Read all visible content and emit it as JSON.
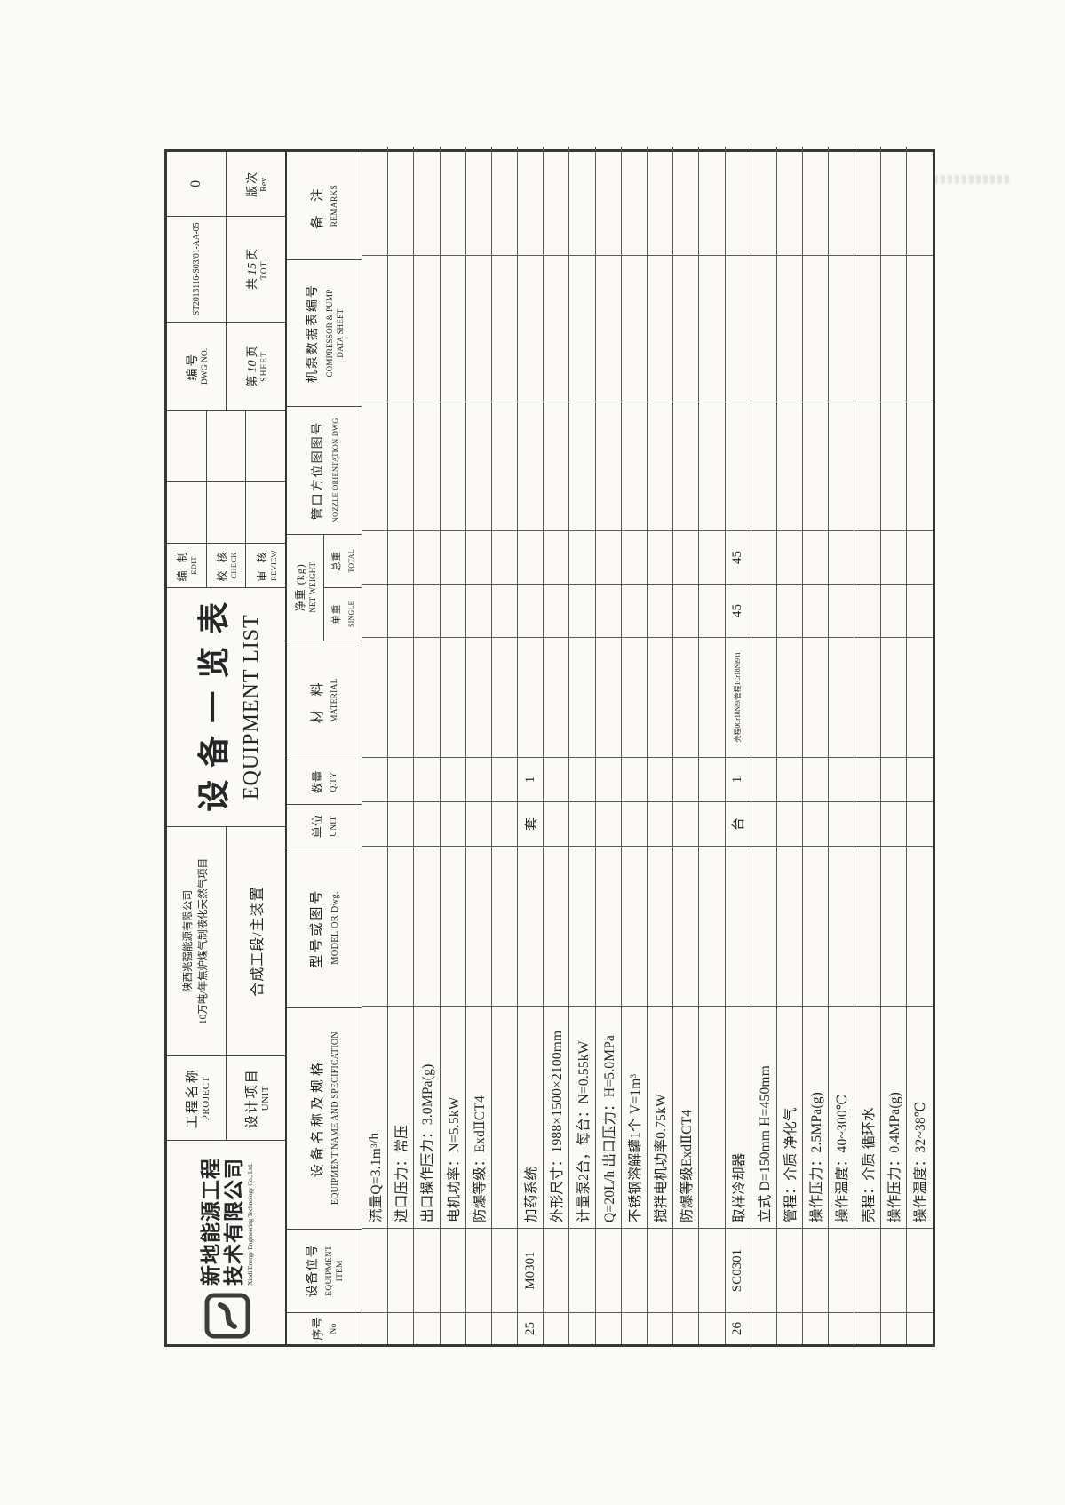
{
  "title_block": {
    "company": {
      "name_line1": "新地能源工程",
      "name_line2": "技术有限公司",
      "name_en": "Xindi Energy Engineering Technology Co., Ltd."
    },
    "project_label": {
      "zh": "工程名称",
      "en": "PROJECT"
    },
    "unit_label": {
      "zh": "设计项目",
      "en": "UNIT"
    },
    "project_name_line1": "陕西兆强能源有限公司",
    "project_name_line2": "10万吨/年焦炉煤气制液化天然气项目",
    "unit_value": "合成工段/主装置",
    "doc_title_zh": "设备一览表",
    "doc_title_en": "EQUIPMENT LIST",
    "sign_rows": [
      {
        "zh": "编 制",
        "en": "EDIT"
      },
      {
        "zh": "校 核",
        "en": "CHECK"
      },
      {
        "zh": "审 核",
        "en": "REVIEW"
      }
    ],
    "dwg": {
      "zh": "编号",
      "en": "DWG NO.",
      "value": "ST2013116-S03/01-AA-05"
    },
    "sheet_page": {
      "prefix": "第",
      "value": "10",
      "suffix": "页",
      "en": "SHEET"
    },
    "sheet_total": {
      "prefix": "共",
      "value": "15",
      "suffix": "页",
      "en": "TOT."
    },
    "rev": {
      "zh": "版次",
      "en": "Rev.",
      "value": "0"
    }
  },
  "table": {
    "headers": {
      "no": {
        "zh": "序号",
        "en": "No"
      },
      "item": {
        "zh": "设备位号",
        "en": "EQUIPMENT ITEM"
      },
      "spec": {
        "zh": "设备名称及规格",
        "en": "EQUIPMENT NAME AND SPECIFICATION"
      },
      "model": {
        "zh": "型号或图号",
        "en": "MODEL OR Dwg."
      },
      "unit": {
        "zh": "单位",
        "en": "UNIT"
      },
      "qty": {
        "zh": "数量",
        "en": "Q.TY"
      },
      "material": {
        "zh": "材 料",
        "en": "MATERIAL"
      },
      "net_weight": {
        "zh": "净重 (kg)",
        "en": "NET WEIGHT"
      },
      "single": {
        "zh": "单重",
        "en": "SINGLE"
      },
      "total": {
        "zh": "总重",
        "en": "TOTAL"
      },
      "nozzle": {
        "zh": "管口方位图图号",
        "en": "NOZZLE ORIENTATION DWG"
      },
      "pump": {
        "zh": "机泵数据表编号",
        "en": "COMPRESSOR & PUMP DATA SHEET"
      },
      "remarks": {
        "zh": "备 注",
        "en": "REMARKS"
      }
    },
    "rows": [
      {
        "spec": "流量Q=3.1m³/h"
      },
      {
        "spec": "进口压力：常压"
      },
      {
        "spec": "出口操作压力：3.0MPa(g)"
      },
      {
        "spec": "电机功率：N=5.5kW"
      },
      {
        "spec": "防爆等级：ExdⅡCT4"
      },
      {},
      {
        "no": "25",
        "item": "M0301",
        "spec": "加药系统",
        "unit": "套",
        "qty": "1"
      },
      {
        "spec": "外形尺寸：1988×1500×2100mm"
      },
      {
        "spec": "计量泵2台，每台：N=0.55kW"
      },
      {
        "spec": "Q=20L/h 出口压力：H=5.0MPa"
      },
      {
        "spec": "不锈钢溶解罐1个  V=1m³"
      },
      {
        "spec": "搅拌电机功率0.75kW"
      },
      {
        "spec": "防爆等级ExdⅡCT4"
      },
      {},
      {
        "no": "26",
        "item": "SC0301",
        "spec": "取样冷却器",
        "unit": "台",
        "qty": "1",
        "material": "壳程0Cr18Ni9/管程1Cr18Ni9Ti",
        "single": "45",
        "total": "45"
      },
      {
        "spec": "立式 D=150mm H=450mm"
      },
      {
        "spec": "管程：介质 净化气"
      },
      {
        "spec": "操作压力：2.5MPa(g)"
      },
      {
        "spec": "操作温度：40~300℃"
      },
      {
        "spec": "壳程：介质 循环水"
      },
      {
        "spec": "操作压力：0.4MPa(g)"
      },
      {
        "spec": "操作温度：32~38℃"
      }
    ]
  }
}
